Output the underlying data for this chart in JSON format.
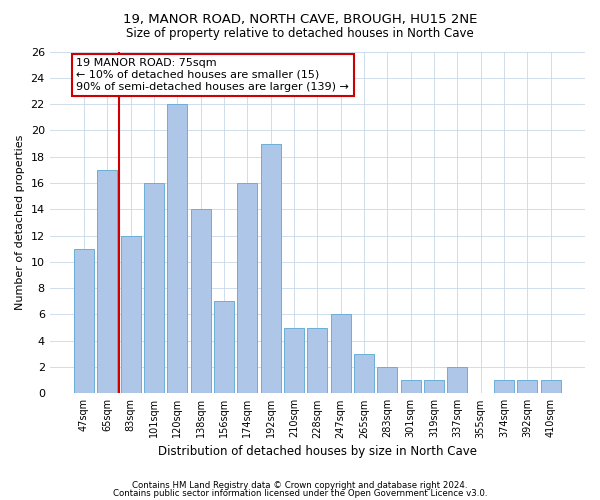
{
  "title1": "19, MANOR ROAD, NORTH CAVE, BROUGH, HU15 2NE",
  "title2": "Size of property relative to detached houses in North Cave",
  "xlabel": "Distribution of detached houses by size in North Cave",
  "ylabel": "Number of detached properties",
  "categories": [
    "47sqm",
    "65sqm",
    "83sqm",
    "101sqm",
    "120sqm",
    "138sqm",
    "156sqm",
    "174sqm",
    "192sqm",
    "210sqm",
    "228sqm",
    "247sqm",
    "265sqm",
    "283sqm",
    "301sqm",
    "319sqm",
    "337sqm",
    "355sqm",
    "374sqm",
    "392sqm",
    "410sqm"
  ],
  "values": [
    11,
    17,
    12,
    16,
    22,
    14,
    7,
    16,
    19,
    5,
    5,
    6,
    3,
    2,
    1,
    1,
    2,
    0,
    1,
    1,
    1
  ],
  "bar_color": "#aec6e8",
  "bar_edge_color": "#6baed6",
  "vline_color": "#cc0000",
  "annotation_text": "19 MANOR ROAD: 75sqm\n← 10% of detached houses are smaller (15)\n90% of semi-detached houses are larger (139) →",
  "annotation_box_color": "#ffffff",
  "annotation_box_edge": "#cc0000",
  "ylim": [
    0,
    26
  ],
  "yticks": [
    0,
    2,
    4,
    6,
    8,
    10,
    12,
    14,
    16,
    18,
    20,
    22,
    24,
    26
  ],
  "footer1": "Contains HM Land Registry data © Crown copyright and database right 2024.",
  "footer2": "Contains public sector information licensed under the Open Government Licence v3.0.",
  "bg_color": "#ffffff",
  "grid_color": "#c8d8e8"
}
